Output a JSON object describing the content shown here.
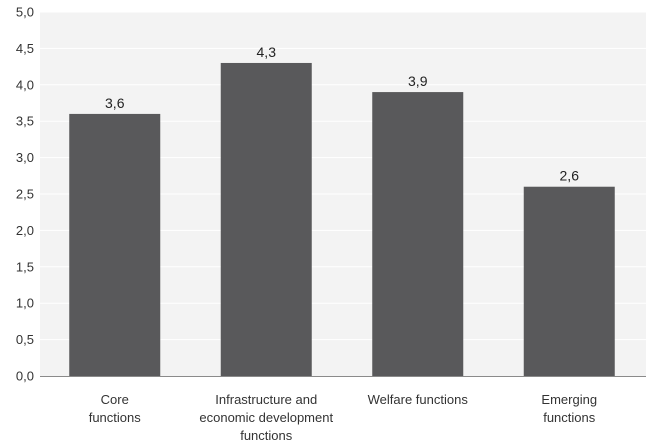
{
  "chart_data": {
    "type": "bar",
    "title": "",
    "xlabel": "",
    "ylabel": "",
    "categories": [
      [
        "Core",
        "functions"
      ],
      [
        "Infrastructure and",
        "economic development",
        "functions"
      ],
      [
        "Welfare functions"
      ],
      [
        "Emerging",
        "functions"
      ]
    ],
    "values": [
      3.6,
      4.3,
      3.9,
      2.6
    ],
    "data_labels": [
      "3,6",
      "4,3",
      "3,9",
      "2,6"
    ],
    "ylim": [
      0,
      5
    ],
    "yticks": [
      0,
      0.5,
      1,
      1.5,
      2,
      2.5,
      3,
      3.5,
      4,
      4.5,
      5
    ],
    "ytick_labels": [
      "0,0",
      "0,5",
      "1,0",
      "1,5",
      "2,0",
      "2,5",
      "3,0",
      "3,5",
      "4,0",
      "4,5",
      "5,0"
    ],
    "grid": true,
    "legend": "none",
    "colors": {
      "bar": "#59595b",
      "plot_background": "#f3f3f3",
      "grid": "#ffffff"
    }
  }
}
